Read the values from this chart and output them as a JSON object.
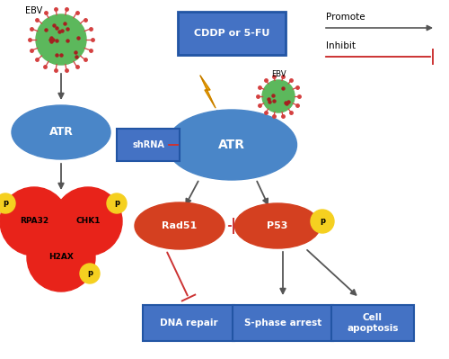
{
  "bg_color": "#ffffff",
  "blue_box": "#4472C4",
  "blue_ellipse": "#4B8BBE",
  "red_blob": "#E8231A",
  "yellow_p": "#F5D020",
  "green_virus": "#5CB85C",
  "spike_color": "#E8231A",
  "dark_arrow": "#555555",
  "red_inhibit": "#CC3333",
  "orange_bolt": "#F0A500",
  "promote_text": "Promote",
  "inhibit_text": "Inhibit",
  "atr_text": "ATR",
  "cddp_text": "CDDP or 5-FU",
  "shrna_text": "shRNA",
  "rad51_text": "Rad51",
  "p53_text": "P53",
  "rpa32_text": "RPA32",
  "chk1_text": "CHK1",
  "h2ax_text": "H2AX",
  "ebv_text": "EBV",
  "dna_text": "DNA repair",
  "sphase_text": "S-phase arrest",
  "apo_text": "Cell\napoptosis"
}
